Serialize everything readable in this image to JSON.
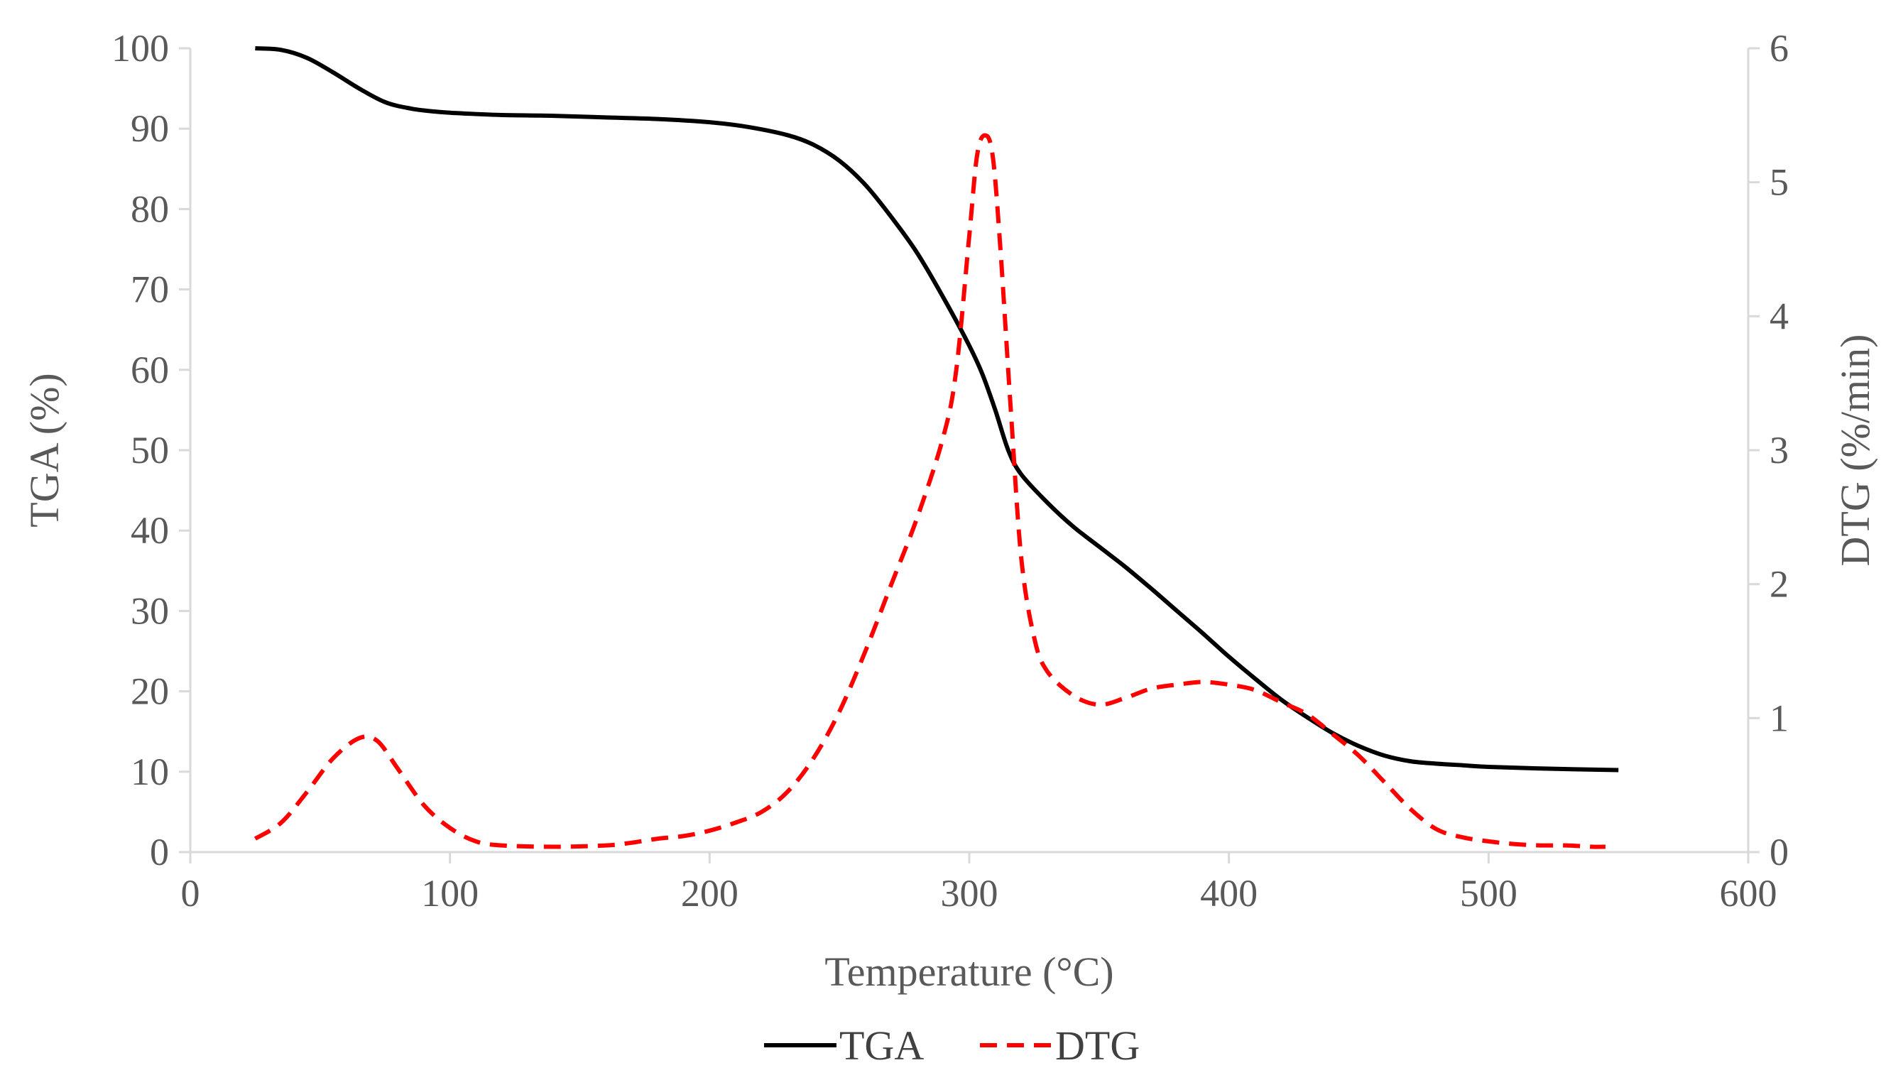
{
  "chart_data": {
    "type": "line",
    "title": "",
    "xlabel": "Temperature (°C)",
    "ylabel": "TGA (%)",
    "y2label": "DTG (%/min)",
    "xlim": [
      0,
      600
    ],
    "ylim": [
      0,
      100
    ],
    "y2lim": [
      0,
      6
    ],
    "xticks": [
      0,
      100,
      200,
      300,
      400,
      500,
      600
    ],
    "yticks": [
      0,
      10,
      20,
      30,
      40,
      50,
      60,
      70,
      80,
      90,
      100
    ],
    "y2ticks": [
      0,
      1,
      2,
      3,
      4,
      5,
      6
    ],
    "grid": false,
    "legend_position": "bottom",
    "series": [
      {
        "name": "TGA",
        "axis": "left",
        "color": "#000000",
        "style": "solid",
        "x": [
          25,
          35,
          45,
          55,
          65,
          75,
          85,
          95,
          105,
          120,
          140,
          160,
          180,
          200,
          215,
          230,
          240,
          250,
          260,
          270,
          280,
          290,
          300,
          305,
          310,
          315,
          320,
          330,
          340,
          350,
          360,
          370,
          380,
          390,
          400,
          410,
          420,
          430,
          440,
          450,
          460,
          470,
          480,
          490,
          500,
          520,
          550
        ],
        "y": [
          100,
          99.8,
          98.8,
          97,
          95,
          93.3,
          92.5,
          92.1,
          91.9,
          91.7,
          91.6,
          91.4,
          91.2,
          90.8,
          90.2,
          89.2,
          88,
          86,
          83,
          79,
          74.5,
          69,
          63,
          59.5,
          55,
          50,
          47,
          43.5,
          40.5,
          38,
          35.5,
          32.8,
          30,
          27.2,
          24.3,
          21.6,
          19,
          16.8,
          14.8,
          13.2,
          12,
          11.3,
          11,
          10.8,
          10.6,
          10.4,
          10.2
        ]
      },
      {
        "name": "DTG",
        "axis": "right",
        "color": "#ff0000",
        "style": "dashed",
        "x": [
          25,
          35,
          45,
          55,
          65,
          72,
          80,
          90,
          100,
          110,
          120,
          140,
          160,
          170,
          180,
          190,
          200,
          210,
          220,
          230,
          240,
          250,
          260,
          270,
          280,
          290,
          295,
          300,
          303,
          306,
          309,
          312,
          316,
          320,
          325,
          330,
          340,
          350,
          360,
          370,
          380,
          390,
          400,
          410,
          420,
          430,
          440,
          450,
          460,
          470,
          480,
          490,
          500,
          510,
          520,
          530,
          540,
          545
        ],
        "y": [
          0.1,
          0.22,
          0.45,
          0.7,
          0.85,
          0.83,
          0.62,
          0.35,
          0.18,
          0.08,
          0.05,
          0.04,
          0.05,
          0.07,
          0.1,
          0.12,
          0.16,
          0.22,
          0.3,
          0.45,
          0.7,
          1.05,
          1.5,
          2.0,
          2.5,
          3.1,
          3.6,
          4.6,
          5.2,
          5.35,
          5.2,
          4.5,
          3.3,
          2.2,
          1.6,
          1.35,
          1.17,
          1.1,
          1.15,
          1.22,
          1.25,
          1.27,
          1.25,
          1.21,
          1.12,
          1.03,
          0.88,
          0.72,
          0.52,
          0.32,
          0.17,
          0.11,
          0.08,
          0.06,
          0.05,
          0.05,
          0.04,
          0.04
        ]
      }
    ]
  }
}
